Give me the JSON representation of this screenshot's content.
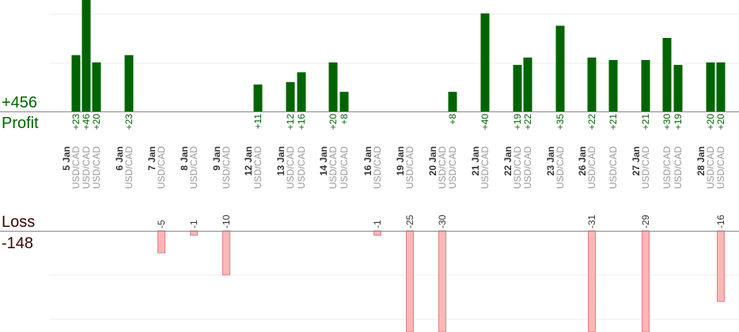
{
  "summary": {
    "profit_total": "+456",
    "profit_label": "Profit",
    "loss_label": "Loss",
    "loss_total": "-148"
  },
  "colors": {
    "profit": "#006400",
    "loss_fill": "#ffb6b6",
    "loss_stroke": "#e08080",
    "profit_label": "#006400",
    "loss_text": "#3a0000",
    "pair": "#999999",
    "day": "#333333",
    "grid": "#eeeeee",
    "axis": "#888888"
  },
  "chart_data": {
    "type": "bar",
    "grid": true,
    "columns": [
      {
        "day": "5 Jan",
        "pair": "USD/CAD"
      },
      {
        "day": "",
        "pair": "USD/CAD"
      },
      {
        "day": "",
        "pair": "USD/CAD"
      },
      {
        "day": "6 Jan",
        "pair": "USD/CAD"
      },
      {
        "day": "7 Jan",
        "pair": "USD/CAD"
      },
      {
        "day": "8 Jan",
        "pair": "USD/CAD"
      },
      {
        "day": "9 Jan",
        "pair": "USD/CAD"
      },
      {
        "day": "12 Jan",
        "pair": "USD/CAD"
      },
      {
        "day": "13 Jan",
        "pair": "USD/CAD"
      },
      {
        "day": "",
        "pair": "USD/CAD"
      },
      {
        "day": "14 Jan",
        "pair": "USD/CAD"
      },
      {
        "day": "",
        "pair": "USD/CAD"
      },
      {
        "day": "16 Jan",
        "pair": "USD/CAD"
      },
      {
        "day": "19 Jan",
        "pair": "USD/CAD"
      },
      {
        "day": "20 Jan",
        "pair": "USD/CAD"
      },
      {
        "day": "",
        "pair": "USD/CAD"
      },
      {
        "day": "21 Jan",
        "pair": "USD/CAD"
      },
      {
        "day": "22 Jan",
        "pair": "USD/CAD"
      },
      {
        "day": "",
        "pair": "USD/CAD"
      },
      {
        "day": "23 Jan",
        "pair": "USD/CAD"
      },
      {
        "day": "26 Jan",
        "pair": "USD/CAD"
      },
      {
        "day": "",
        "pair": "USD/CAD"
      },
      {
        "day": "27 Jan",
        "pair": "USD/CAD"
      },
      {
        "day": "",
        "pair": "USD/CAD"
      },
      {
        "day": "",
        "pair": "USD/CAD"
      },
      {
        "day": "28 Jan",
        "pair": "USD/CAD"
      },
      {
        "day": "",
        "pair": "USD/CAD"
      }
    ],
    "profits": [
      {
        "col": 0,
        "value": 23,
        "label": "+23"
      },
      {
        "col": 1,
        "value": 46,
        "label": "+46"
      },
      {
        "col": 2,
        "value": 20,
        "label": "+20"
      },
      {
        "col": 3,
        "value": 23,
        "label": "+23"
      },
      {
        "col": 7,
        "value": 11,
        "label": "+11"
      },
      {
        "col": 8,
        "value": 12,
        "label": "+12"
      },
      {
        "col": 9,
        "value": 16,
        "label": "+16"
      },
      {
        "col": 10,
        "value": 20,
        "label": "+20"
      },
      {
        "col": 11,
        "value": 8,
        "label": "+8"
      },
      {
        "col": 15,
        "value": 8,
        "label": "+8"
      },
      {
        "col": 16,
        "value": 40,
        "label": "+40"
      },
      {
        "col": 17,
        "value": 19,
        "label": "+19"
      },
      {
        "col": 18,
        "value": 22,
        "label": "+22"
      },
      {
        "col": 19,
        "value": 35,
        "label": "+35"
      },
      {
        "col": 20,
        "value": 22,
        "label": "+22"
      },
      {
        "col": 21,
        "value": 21,
        "label": "+21"
      },
      {
        "col": 22,
        "value": 21,
        "label": "+21"
      },
      {
        "col": 23,
        "value": 30,
        "label": "+30"
      },
      {
        "col": 24,
        "value": 19,
        "label": "+19"
      },
      {
        "col": 25,
        "value": 20,
        "label": "+20"
      },
      {
        "col": 26,
        "value": 20,
        "label": "+20"
      }
    ],
    "losses": [
      {
        "col": 4,
        "value": -5,
        "label": "-5"
      },
      {
        "col": 5,
        "value": -1,
        "label": "-1"
      },
      {
        "col": 6,
        "value": -10,
        "label": "-10"
      },
      {
        "col": 12,
        "value": -1,
        "label": "-1"
      },
      {
        "col": 13,
        "value": -25,
        "label": "-25"
      },
      {
        "col": 14,
        "value": -30,
        "label": "-30"
      },
      {
        "col": 20,
        "value": -31,
        "label": "-31"
      },
      {
        "col": 22,
        "value": -29,
        "label": "-29"
      },
      {
        "col": 26,
        "value": -16,
        "label": "-16"
      }
    ]
  }
}
